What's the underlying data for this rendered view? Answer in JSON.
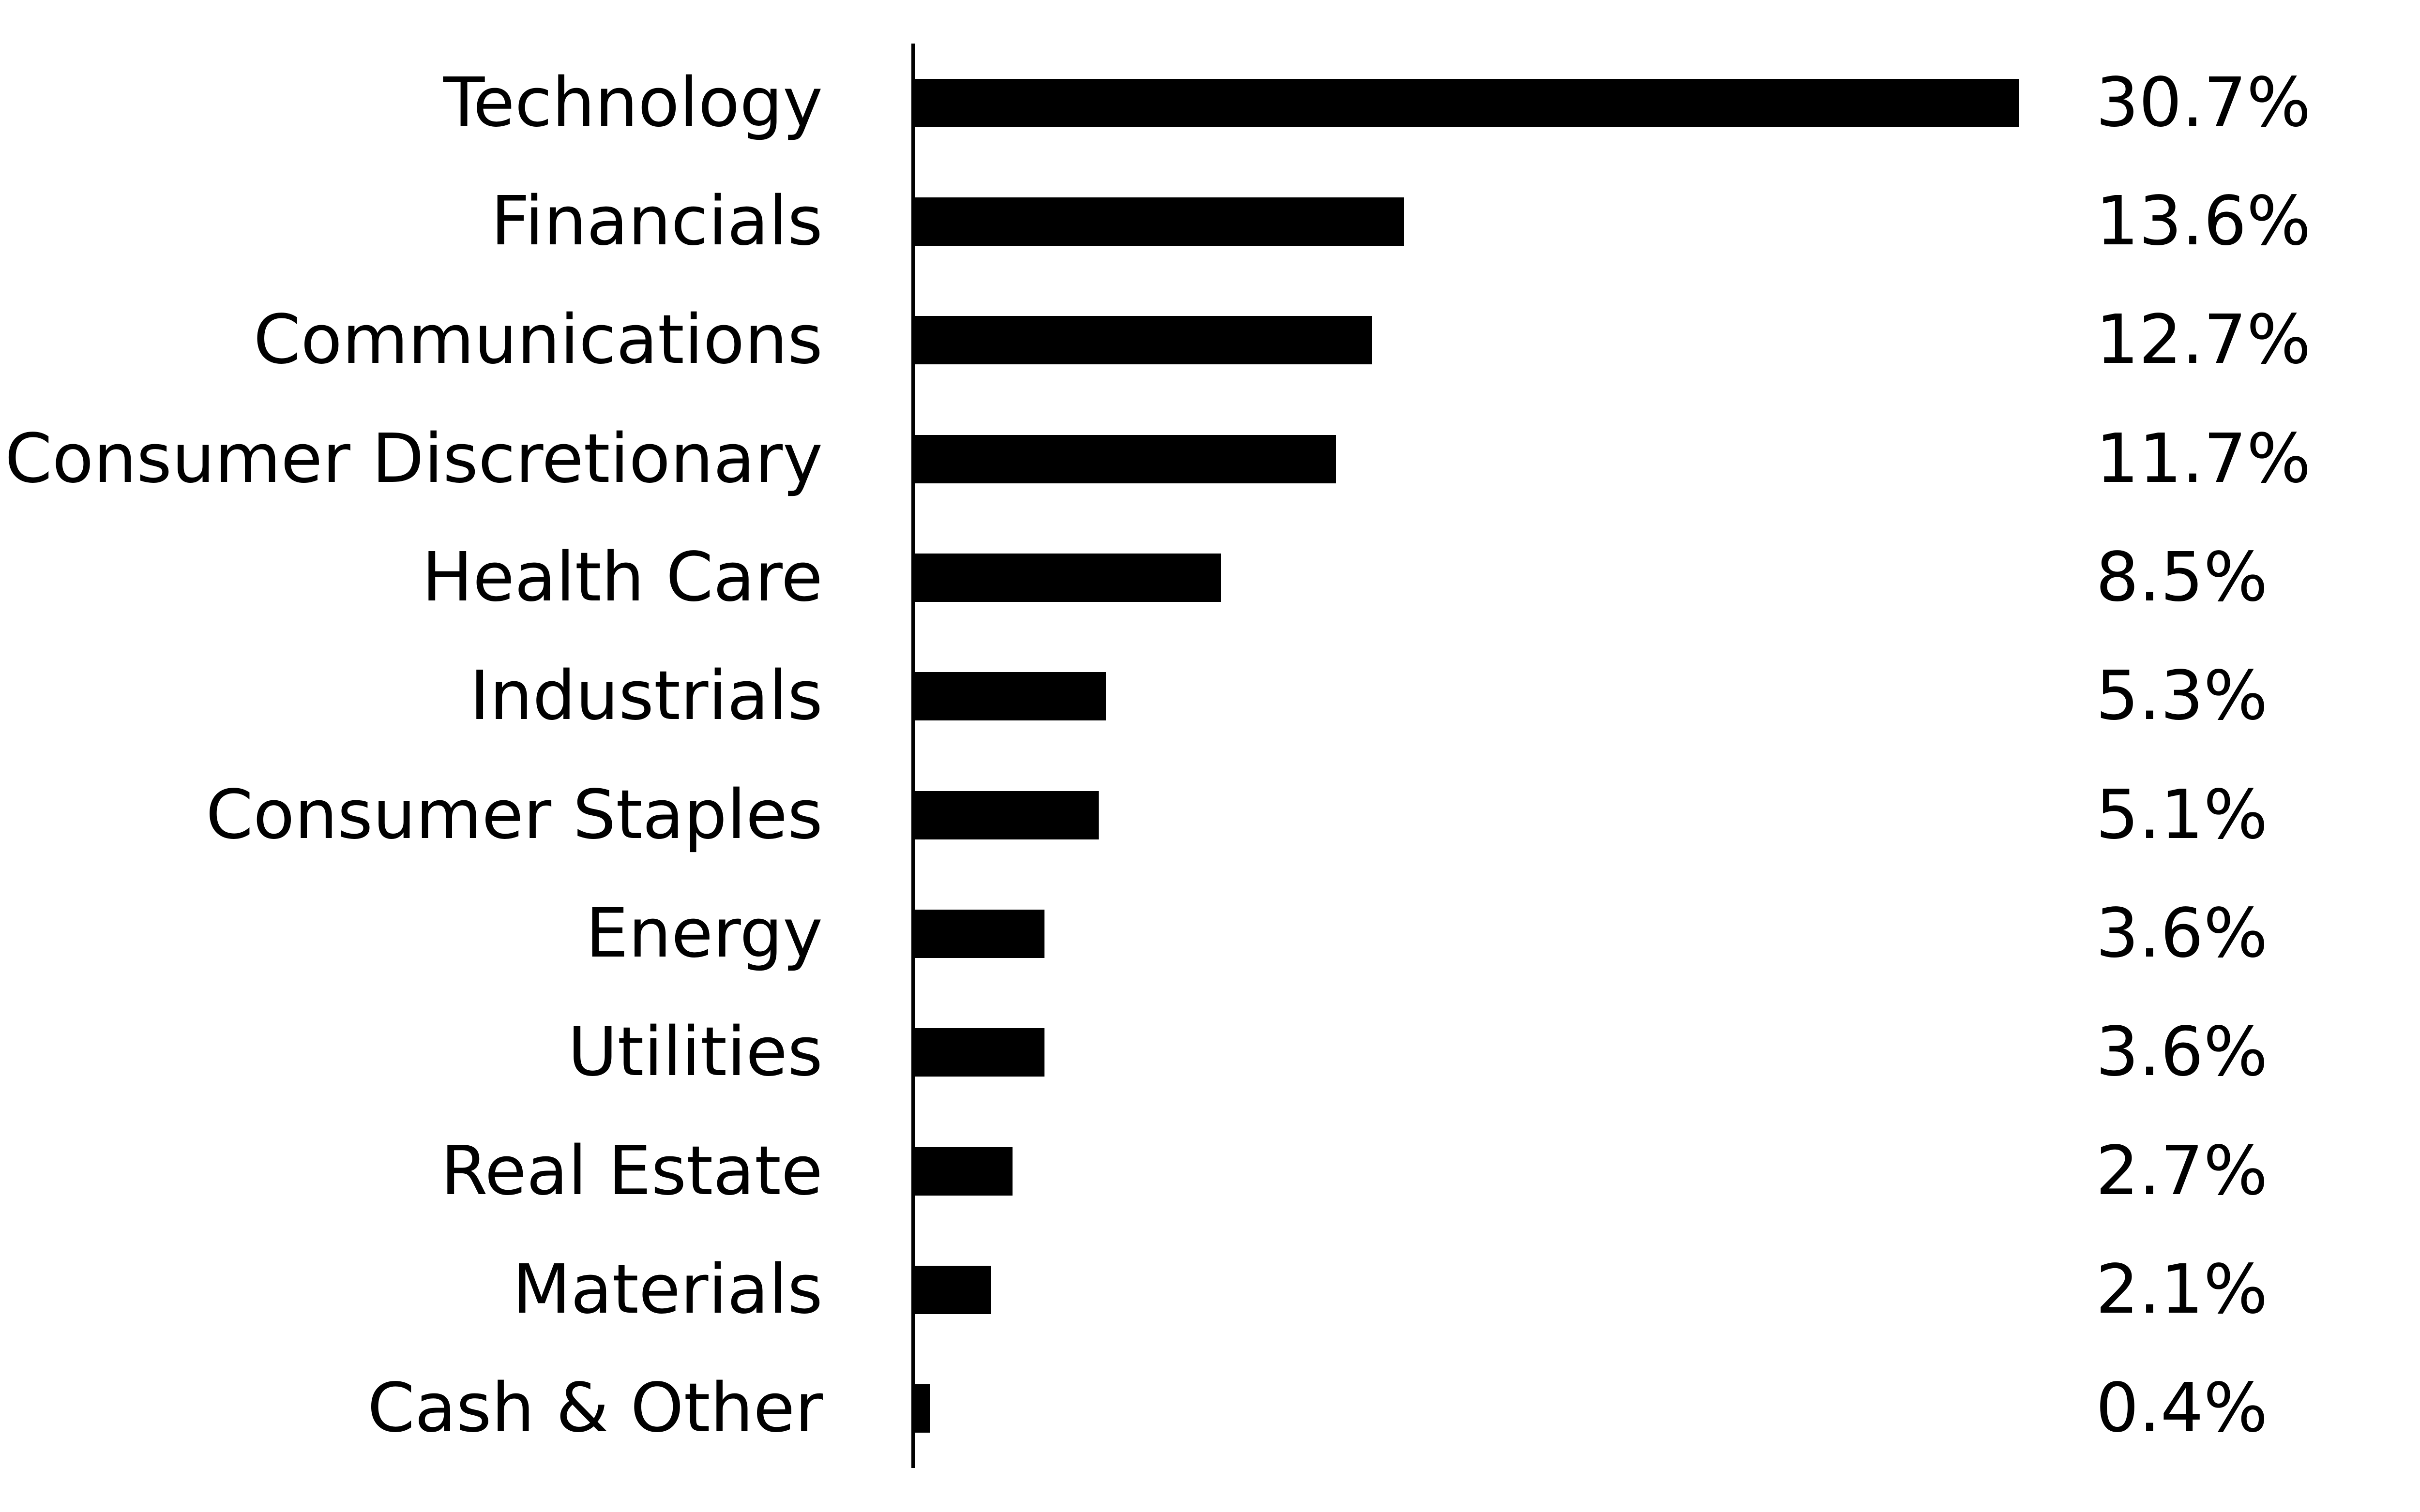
{
  "chart_data": {
    "type": "bar",
    "orientation": "horizontal",
    "title": "",
    "xlabel": "",
    "ylabel": "",
    "categories": [
      "Technology",
      "Financials",
      "Communications",
      "Consumer Discretionary",
      "Health Care",
      "Industrials",
      "Consumer Staples",
      "Energy",
      "Utilities",
      "Real Estate",
      "Materials",
      "Cash & Other"
    ],
    "values": [
      30.7,
      13.6,
      12.7,
      11.7,
      8.5,
      5.3,
      5.1,
      3.6,
      3.6,
      2.7,
      2.1,
      0.4
    ],
    "value_labels": [
      "30.7%",
      "13.6%",
      "12.7%",
      "11.7%",
      "8.5%",
      "5.3%",
      "5.1%",
      "3.6%",
      "3.6%",
      "2.7%",
      "2.1%",
      "0.4%"
    ],
    "xlim": [
      0,
      41.9
    ],
    "grid": false,
    "legend": false,
    "bar_color": "#000000",
    "text_color": "#000000",
    "background_color": "#ffffff"
  }
}
